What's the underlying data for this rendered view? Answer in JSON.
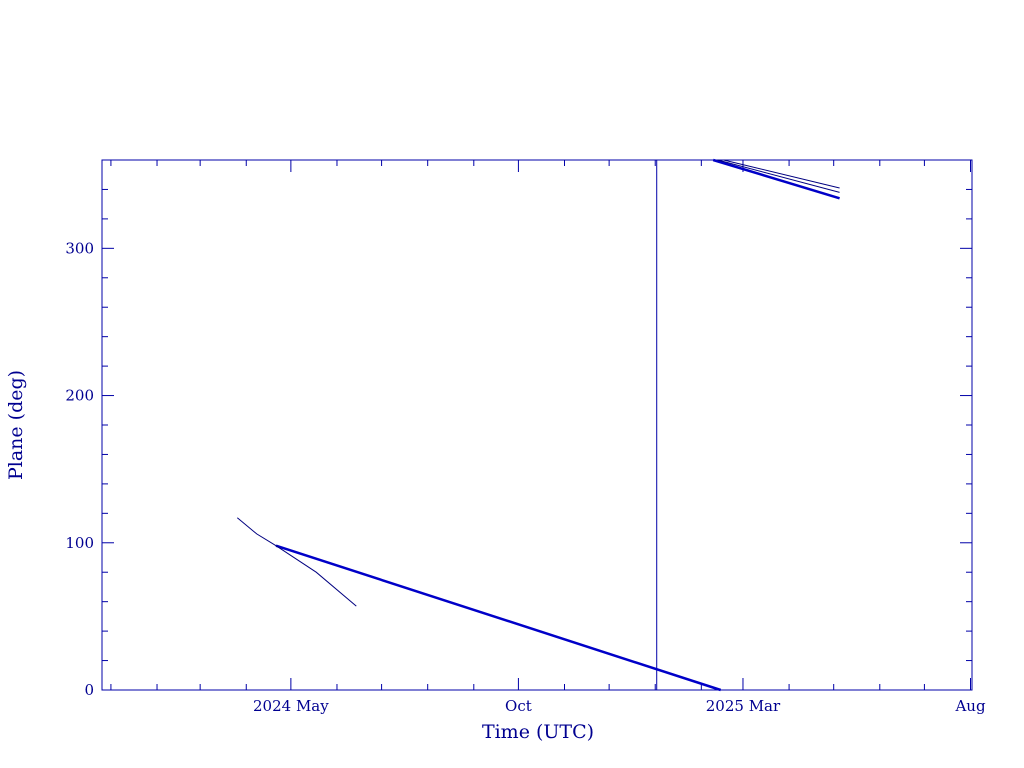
{
  "chart_data": {
    "type": "line",
    "x_label": "Time (UTC)",
    "y_label": "Plane (deg)",
    "xlim": [
      "2023-12-26",
      "2025-08-02"
    ],
    "ylim": [
      0,
      360
    ],
    "xticks": [
      {
        "value": "2024-05-01",
        "label": "2024 May"
      },
      {
        "value": "2024-10-01",
        "label": "Oct"
      },
      {
        "value": "2025-03-01",
        "label": "2025 Mar"
      },
      {
        "value": "2025-08-01",
        "label": "Aug"
      }
    ],
    "xminorticks": [
      "2024-01-01",
      "2024-02-01",
      "2024-03-01",
      "2024-04-01",
      "2024-06-01",
      "2024-07-01",
      "2024-08-01",
      "2024-09-01",
      "2024-11-01",
      "2024-12-01",
      "2025-01-01",
      "2025-02-01",
      "2025-04-01",
      "2025-05-01",
      "2025-06-01",
      "2025-07-01"
    ],
    "yticks": [
      0,
      100,
      200,
      300
    ],
    "yminorticks": [
      20,
      40,
      60,
      80,
      120,
      140,
      160,
      180,
      220,
      240,
      260,
      280,
      320,
      340
    ],
    "vline": "2025-01-02",
    "color": "#0000a8",
    "series": [
      {
        "color": "#0000c8",
        "width": 2.5,
        "x": [
          "2024-04-21",
          "2025-02-14",
          null,
          "2025-02-09",
          "2025-05-05"
        ],
        "values": [
          98,
          0,
          null,
          360,
          334
        ]
      },
      {
        "color": "#000080",
        "width": 1,
        "x": [
          "2024-03-26",
          "2024-04-08",
          "2024-04-21",
          "2024-05-18",
          "2024-06-14"
        ],
        "values": [
          117,
          106,
          98,
          80,
          57
        ]
      },
      {
        "color": "#000080",
        "width": 1,
        "x": [
          "2025-02-16",
          "2025-05-05"
        ],
        "values": [
          360,
          341
        ]
      },
      {
        "color": "#000080",
        "width": 1,
        "x": [
          "2025-02-12",
          "2025-05-05"
        ],
        "values": [
          360,
          338
        ]
      }
    ]
  }
}
